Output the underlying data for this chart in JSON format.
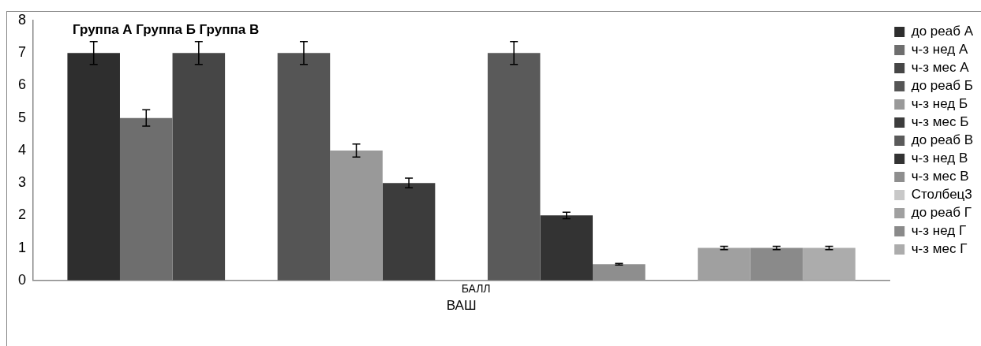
{
  "chart_data": {
    "type": "bar",
    "xlabel": "ВАШ",
    "categories": [
      "БАЛЛ"
    ],
    "annotations": [
      "Группа А Группа Б Группа В"
    ],
    "ylim": [
      0,
      8
    ],
    "yticks": [
      0,
      1,
      2,
      3,
      4,
      5,
      6,
      7,
      8
    ],
    "grid": false,
    "legend": "right",
    "series": [
      {
        "name": "до реаб А",
        "color": "#2e2e2e",
        "values": [
          7
        ],
        "errors": [
          0.35
        ]
      },
      {
        "name": "ч-з нед А",
        "color": "#6e6e6e",
        "values": [
          5
        ],
        "errors": [
          0.25
        ]
      },
      {
        "name": "ч-з мес А",
        "color": "#464646",
        "values": [
          7
        ],
        "errors": [
          0.35
        ]
      },
      {
        "values": [
          null
        ]
      },
      {
        "name": "до реаб Б",
        "color": "#555555",
        "values": [
          7
        ],
        "errors": [
          0.35
        ]
      },
      {
        "name": "ч-з нед Б",
        "color": "#999999",
        "values": [
          4
        ],
        "errors": [
          0.2
        ]
      },
      {
        "name": "ч-з мес Б",
        "color": "#3c3c3c",
        "values": [
          3
        ],
        "errors": [
          0.15
        ]
      },
      {
        "values": [
          null
        ]
      },
      {
        "name": "до реаб В",
        "color": "#5a5a5a",
        "values": [
          7
        ],
        "errors": [
          0.35
        ]
      },
      {
        "name": "ч-з нед В",
        "color": "#333333",
        "values": [
          2
        ],
        "errors": [
          0.1
        ]
      },
      {
        "name": "ч-з мес В",
        "color": "#8e8e8e",
        "values": [
          0.5
        ],
        "errors": [
          0.025
        ]
      },
      {
        "name": "Столбец3",
        "color": "#c8c8c8",
        "values": [
          null
        ]
      },
      {
        "name": "до реаб Г",
        "color": "#a0a0a0",
        "values": [
          1
        ],
        "errors": [
          0.05
        ]
      },
      {
        "name": "ч-з нед Г",
        "color": "#8a8a8a",
        "values": [
          1
        ],
        "errors": [
          0.05
        ]
      },
      {
        "name": "ч-з мес Г",
        "color": "#acacac",
        "values": [
          1
        ],
        "errors": [
          0.05
        ]
      }
    ]
  }
}
